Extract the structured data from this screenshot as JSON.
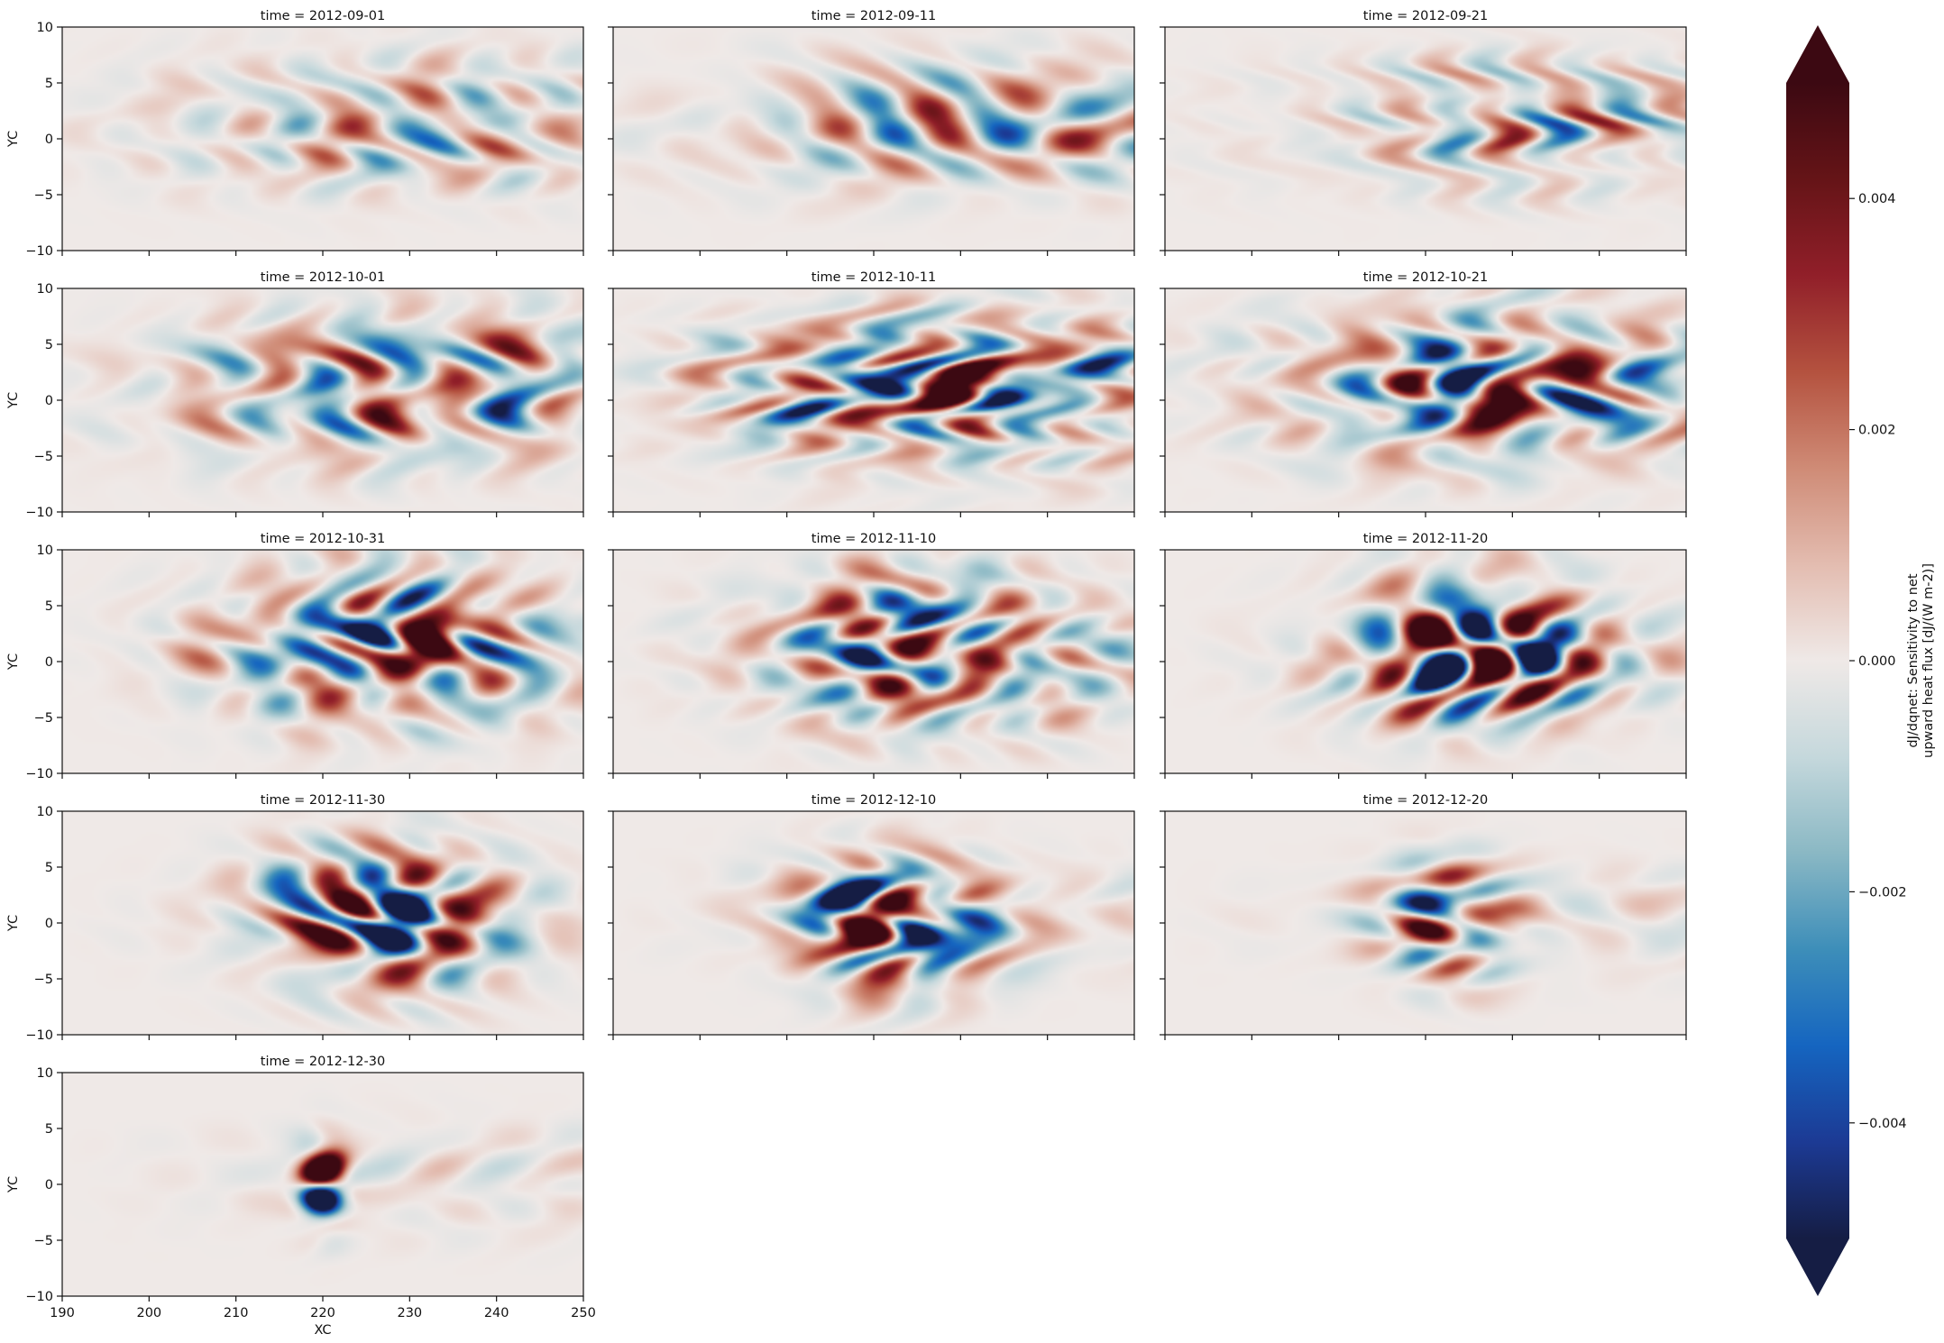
{
  "chart_data": {
    "type": "heatmap",
    "layout": "facet grid, 3 columns, 13 panels",
    "panels": [
      {
        "title": "time = 2012-09-01",
        "intensity": 0.3,
        "center_x": 232,
        "center_y": 1.5,
        "spread_x": 20,
        "spread_y": 3.5
      },
      {
        "title": "time = 2012-09-11",
        "intensity": 0.34,
        "center_x": 233,
        "center_y": 1.5,
        "spread_x": 20,
        "spread_y": 3.5
      },
      {
        "title": "time = 2012-09-21",
        "intensity": 0.42,
        "center_x": 235,
        "center_y": 1.5,
        "spread_x": 19,
        "spread_y": 3.5
      },
      {
        "title": "time = 2012-10-01",
        "intensity": 0.55,
        "center_x": 232,
        "center_y": 1.0,
        "spread_x": 18,
        "spread_y": 4.0
      },
      {
        "title": "time = 2012-10-11",
        "intensity": 0.62,
        "center_x": 230,
        "center_y": 1.0,
        "spread_x": 17,
        "spread_y": 4.0
      },
      {
        "title": "time = 2012-10-21",
        "intensity": 0.75,
        "center_x": 228,
        "center_y": 1.5,
        "spread_x": 15,
        "spread_y": 4.0
      },
      {
        "title": "time = 2012-10-31",
        "intensity": 0.85,
        "center_x": 228,
        "center_y": 1.5,
        "spread_x": 12,
        "spread_y": 4.0
      },
      {
        "title": "time = 2012-11-10",
        "intensity": 0.92,
        "center_x": 226,
        "center_y": 1.0,
        "spread_x": 11,
        "spread_y": 4.0
      },
      {
        "title": "time = 2012-11-20",
        "intensity": 1.0,
        "center_x": 226,
        "center_y": 1.0,
        "spread_x": 9,
        "spread_y": 4.0
      },
      {
        "title": "time = 2012-11-30",
        "intensity": 1.0,
        "center_x": 227,
        "center_y": 0.5,
        "spread_x": 8,
        "spread_y": 4.0
      },
      {
        "title": "time = 2012-12-10",
        "intensity": 1.0,
        "center_x": 222,
        "center_y": 0.0,
        "spread_x": 7,
        "spread_y": 3.5
      },
      {
        "title": "time = 2012-12-20",
        "intensity": 1.0,
        "center_x": 223,
        "center_y": 0.0,
        "spread_x": 5,
        "spread_y": 3.0
      },
      {
        "title": "time = 2012-12-30",
        "intensity": 1.0,
        "center_x": 220,
        "center_y": 0.0,
        "spread_x": 2,
        "spread_y": 2.5
      }
    ],
    "xlabel": "XC",
    "ylabel": "YC",
    "xlim": [
      190,
      250
    ],
    "ylim": [
      -10,
      10
    ],
    "xticks": [
      "190",
      "200",
      "210",
      "220",
      "230",
      "240",
      "250"
    ],
    "yticks": [
      "10",
      "5",
      "0",
      "−5",
      "−10"
    ],
    "colorbar": {
      "label_line1": "dJ/dqnet: Sensitivity to net",
      "label_line2": "upward heat flux [dJ/(W m-2)]",
      "range": [
        -0.005,
        0.005
      ],
      "extend": "both",
      "ticks": [
        {
          "value": 0.004,
          "label": "0.004"
        },
        {
          "value": 0.002,
          "label": "0.002"
        },
        {
          "value": 0.0,
          "label": "0.000"
        },
        {
          "value": -0.002,
          "label": "−0.002"
        },
        {
          "value": -0.004,
          "label": "−0.004"
        }
      ],
      "colors": [
        "#151d44",
        "#1c3a94",
        "#1565c0",
        "#3d8eb9",
        "#8ab8c4",
        "#c5d8dc",
        "#efe9e7",
        "#e3bcb0",
        "#cf8b76",
        "#b4523f",
        "#911f29",
        "#651417",
        "#3c0912"
      ]
    }
  }
}
